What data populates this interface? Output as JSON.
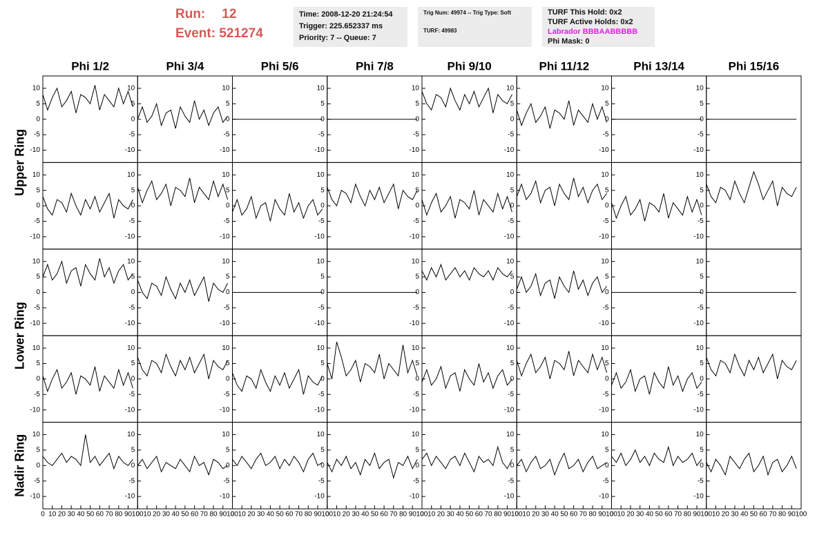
{
  "header": {
    "run_label": "Run:",
    "run": "12",
    "event_label": "Event:",
    "event": "521274",
    "box1": [
      "Time: 2008-12-20 21:24:54",
      "Trigger: 225.652337 ms",
      "Priority: 7 -- Queue: 7"
    ],
    "box2": [
      "Trig Num: 49974 -- Trig Type: Soft",
      "TURF: 49983"
    ],
    "box3": [
      "TURF This Hold: 0x2",
      "TURF Active Holds: 0x2",
      "Labrador BBBAABBBBB",
      "Phi Mask: 0"
    ]
  },
  "chart_data": {
    "type": "line",
    "color": "#000000",
    "columns": [
      "Phi 1/2",
      "Phi 3/4",
      "Phi 5/6",
      "Phi 7/8",
      "Phi 9/10",
      "Phi 11/12",
      "Phi 13/14",
      "Phi 15/16"
    ],
    "rows": [
      "Upper Ring",
      "Lower Ring",
      "Nadir Ring"
    ],
    "xlim": [
      0,
      100
    ],
    "ylim": [
      -14,
      14
    ],
    "xticks": [
      0,
      10,
      20,
      30,
      40,
      50,
      60,
      70,
      80,
      90,
      100
    ],
    "yticks": [
      -10,
      -5,
      0,
      5,
      10
    ],
    "x": [
      0,
      5,
      10,
      15,
      20,
      25,
      30,
      35,
      40,
      45,
      50,
      55,
      60,
      65,
      70,
      75,
      80,
      85,
      90,
      95
    ],
    "series": [
      {
        "values": [
          8,
          3,
          7,
          10,
          4,
          6,
          9,
          2,
          8,
          7,
          5,
          11,
          3,
          8,
          6,
          4,
          10,
          5,
          9,
          4
        ]
      },
      {
        "values": [
          0,
          4,
          -1,
          1,
          5,
          -2,
          2,
          3,
          -3,
          4,
          1,
          -1,
          6,
          0,
          3,
          -2,
          2,
          4,
          -1,
          1
        ]
      },
      {
        "values": [
          0,
          0,
          0,
          0,
          0,
          0,
          0,
          0,
          0,
          0,
          0,
          0,
          0,
          0,
          0,
          0,
          0,
          0,
          0,
          0
        ]
      },
      {
        "values": [
          0,
          0,
          0,
          0,
          0,
          0,
          0,
          0,
          0,
          0,
          0,
          0,
          0,
          0,
          0,
          0,
          0,
          0,
          0,
          0
        ]
      },
      {
        "values": [
          9,
          5,
          3,
          8,
          7,
          4,
          10,
          6,
          3,
          8,
          5,
          9,
          4,
          7,
          10,
          2,
          8,
          6,
          5,
          8
        ]
      },
      {
        "values": [
          3,
          -2,
          2,
          5,
          -1,
          1,
          4,
          -3,
          3,
          2,
          0,
          6,
          -2,
          3,
          1,
          -1,
          5,
          0,
          4,
          -1
        ]
      },
      {
        "values": [
          0,
          0,
          0,
          0,
          0,
          0,
          0,
          0,
          0,
          0,
          0,
          0,
          0,
          0,
          0,
          0,
          0,
          0,
          0,
          0
        ]
      },
      {
        "values": [
          0,
          0,
          0,
          0,
          0,
          0,
          0,
          0,
          0,
          0,
          0,
          0,
          0,
          0,
          0,
          0,
          0,
          0,
          0,
          0
        ]
      },
      {
        "values": [
          3,
          -1,
          -3,
          2,
          1,
          -2,
          4,
          0,
          -3,
          2,
          -1,
          3,
          -2,
          1,
          4,
          -4,
          2,
          0,
          -1,
          2
        ]
      },
      {
        "values": [
          6,
          1,
          5,
          8,
          2,
          4,
          7,
          0,
          6,
          5,
          3,
          9,
          1,
          6,
          4,
          2,
          8,
          3,
          7,
          2
        ]
      },
      {
        "values": [
          -2,
          2,
          -3,
          -1,
          3,
          -4,
          0,
          1,
          -5,
          2,
          -1,
          -3,
          4,
          -2,
          1,
          -4,
          0,
          2,
          -3,
          -1
        ]
      },
      {
        "values": [
          6,
          2,
          0,
          5,
          4,
          1,
          7,
          3,
          0,
          5,
          2,
          6,
          1,
          4,
          7,
          -1,
          5,
          3,
          2,
          5
        ]
      },
      {
        "values": [
          2,
          -3,
          1,
          4,
          -2,
          0,
          3,
          -4,
          2,
          1,
          -1,
          5,
          -3,
          2,
          0,
          -2,
          4,
          -1,
          3,
          -2
        ]
      },
      {
        "values": [
          3,
          7,
          2,
          4,
          8,
          1,
          5,
          6,
          0,
          7,
          4,
          2,
          9,
          3,
          6,
          1,
          5,
          7,
          2,
          4
        ]
      },
      {
        "values": [
          1,
          -4,
          0,
          3,
          -3,
          -1,
          2,
          -5,
          1,
          0,
          -2,
          4,
          -4,
          1,
          -1,
          -3,
          3,
          -2,
          2,
          -3
        ]
      },
      {
        "values": [
          7,
          3,
          1,
          6,
          5,
          2,
          8,
          4,
          1,
          6,
          11,
          7,
          2,
          5,
          8,
          0,
          6,
          4,
          3,
          6
        ]
      },
      {
        "values": [
          5,
          9,
          4,
          6,
          10,
          3,
          7,
          8,
          2,
          9,
          6,
          4,
          11,
          5,
          8,
          3,
          7,
          9,
          4,
          6
        ]
      },
      {
        "values": [
          4,
          0,
          -2,
          3,
          2,
          -1,
          5,
          1,
          -2,
          3,
          0,
          4,
          -1,
          2,
          5,
          -3,
          3,
          1,
          0,
          3
        ]
      },
      {
        "values": [
          0,
          0,
          0,
          0,
          0,
          0,
          0,
          0,
          0,
          0,
          0,
          0,
          0,
          0,
          0,
          0,
          0,
          0,
          0,
          0
        ]
      },
      {
        "values": [
          0,
          0,
          0,
          0,
          0,
          0,
          0,
          0,
          0,
          0,
          0,
          0,
          0,
          0,
          0,
          0,
          0,
          0,
          0,
          0
        ]
      },
      {
        "values": [
          7,
          4,
          8,
          5,
          9,
          4,
          6,
          8,
          5,
          7,
          4,
          8,
          6,
          5,
          7,
          4,
          8,
          6,
          5,
          7
        ]
      },
      {
        "values": [
          1,
          5,
          0,
          2,
          6,
          -1,
          3,
          4,
          -2,
          5,
          2,
          0,
          7,
          1,
          4,
          -1,
          3,
          5,
          0,
          2
        ]
      },
      {
        "values": [
          0,
          0,
          0,
          0,
          0,
          0,
          0,
          0,
          0,
          0,
          0,
          0,
          0,
          0,
          0,
          0,
          0,
          0,
          0,
          0
        ]
      },
      {
        "values": [
          0,
          0,
          0,
          0,
          0,
          0,
          0,
          0,
          0,
          0,
          0,
          0,
          0,
          0,
          0,
          0,
          0,
          0,
          0,
          0
        ]
      },
      {
        "values": [
          1,
          -4,
          0,
          3,
          -3,
          -1,
          2,
          -5,
          1,
          0,
          -2,
          4,
          -4,
          1,
          -1,
          -3,
          3,
          -2,
          2,
          -3
        ]
      },
      {
        "values": [
          7,
          3,
          1,
          6,
          5,
          2,
          8,
          4,
          1,
          6,
          3,
          7,
          2,
          5,
          8,
          0,
          6,
          4,
          3,
          6
        ]
      },
      {
        "values": [
          2,
          -2,
          -4,
          1,
          0,
          -3,
          3,
          -1,
          -4,
          1,
          -2,
          2,
          -3,
          0,
          3,
          -5,
          1,
          -1,
          -2,
          1
        ]
      },
      {
        "values": [
          5,
          0,
          12,
          7,
          1,
          3,
          6,
          -1,
          5,
          4,
          2,
          8,
          0,
          5,
          3,
          1,
          11,
          2,
          6,
          1
        ]
      },
      {
        "values": [
          -1,
          3,
          -2,
          0,
          4,
          -3,
          1,
          2,
          -4,
          3,
          0,
          -2,
          5,
          -1,
          2,
          -3,
          1,
          3,
          -2,
          0
        ]
      },
      {
        "values": [
          6,
          1,
          5,
          8,
          2,
          4,
          7,
          0,
          6,
          5,
          3,
          9,
          1,
          6,
          4,
          2,
          8,
          3,
          7,
          2
        ]
      },
      {
        "values": [
          -2,
          2,
          -3,
          -1,
          3,
          -4,
          0,
          1,
          -5,
          2,
          -1,
          -3,
          4,
          -2,
          1,
          -4,
          0,
          2,
          -3,
          -1
        ]
      },
      {
        "values": [
          7,
          3,
          1,
          6,
          5,
          2,
          8,
          4,
          1,
          6,
          3,
          7,
          2,
          5,
          8,
          0,
          6,
          4,
          3,
          6
        ]
      },
      {
        "values": [
          3,
          1,
          0,
          2,
          4,
          1,
          3,
          2,
          0,
          10,
          1,
          3,
          0,
          2,
          4,
          -1,
          3,
          1,
          0,
          2
        ]
      },
      {
        "values": [
          0,
          2,
          -1,
          1,
          3,
          -2,
          1,
          0,
          -1,
          2,
          0,
          -2,
          3,
          0,
          1,
          -3,
          2,
          1,
          -1,
          0
        ]
      },
      {
        "values": [
          2,
          0,
          3,
          1,
          -1,
          2,
          4,
          0,
          1,
          3,
          -1,
          2,
          0,
          3,
          1,
          -2,
          2,
          4,
          0,
          1
        ]
      },
      {
        "values": [
          1,
          -2,
          2,
          0,
          3,
          -1,
          1,
          -3,
          2,
          0,
          4,
          -1,
          1,
          2,
          -4,
          1,
          0,
          3,
          -1,
          2
        ]
      },
      {
        "values": [
          2,
          4,
          0,
          3,
          1,
          -1,
          2,
          3,
          0,
          4,
          1,
          -2,
          3,
          1,
          2,
          0,
          6,
          1,
          -1,
          2
        ]
      },
      {
        "values": [
          0,
          2,
          -2,
          1,
          3,
          -1,
          0,
          2,
          -3,
          1,
          4,
          -1,
          0,
          2,
          -2,
          1,
          3,
          -1,
          0,
          1
        ]
      },
      {
        "values": [
          3,
          1,
          4,
          0,
          2,
          5,
          1,
          3,
          0,
          4,
          2,
          1,
          6,
          0,
          3,
          1,
          2,
          4,
          0,
          2
        ]
      },
      {
        "values": [
          1,
          -2,
          2,
          0,
          -3,
          3,
          1,
          -1,
          2,
          4,
          -2,
          0,
          3,
          -3,
          1,
          2,
          -2,
          0,
          3,
          -1
        ]
      }
    ]
  }
}
